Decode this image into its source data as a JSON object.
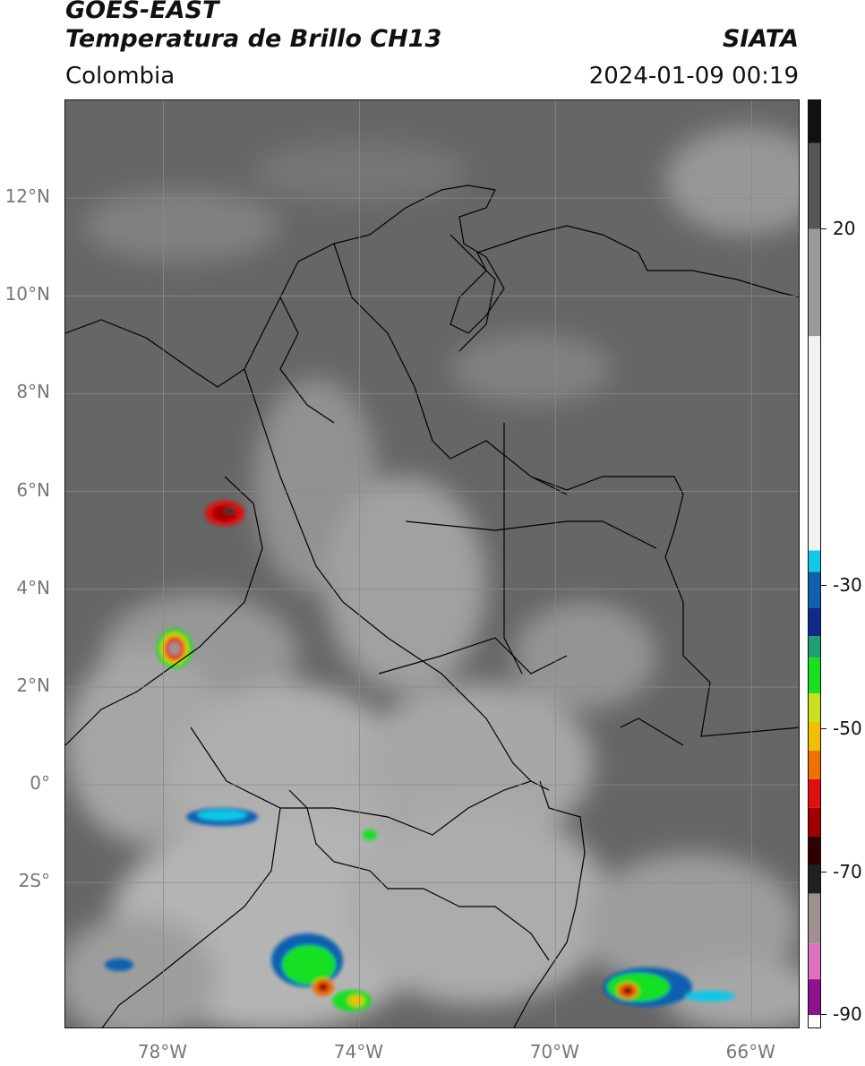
{
  "header": {
    "title_line1": "GOES-EAST",
    "title_line2": "Temperatura de Brillo CH13",
    "region": "Colombia",
    "source": "SIATA",
    "datetime": "2024-01-09 00:19"
  },
  "map": {
    "lon_range": [
      -80,
      -65
    ],
    "lat_range": [
      -5,
      14
    ],
    "grid": true,
    "lat_ticks": [
      {
        "lat": 12,
        "label": "12°N"
      },
      {
        "lat": 10,
        "label": "10°N"
      },
      {
        "lat": 8,
        "label": "8°N"
      },
      {
        "lat": 6,
        "label": "6°N"
      },
      {
        "lat": 4,
        "label": "4°N"
      },
      {
        "lat": 2,
        "label": "2°N"
      },
      {
        "lat": 0,
        "label": "0°"
      },
      {
        "lat": -2,
        "label": "2S°"
      }
    ],
    "lon_ticks": [
      {
        "lon": -78,
        "label": "78°W"
      },
      {
        "lon": -74,
        "label": "74°W"
      },
      {
        "lon": -70,
        "label": "70°W"
      },
      {
        "lon": -66,
        "label": "66°W"
      }
    ],
    "colors": {
      "background": "#666666",
      "coastline": "#000000",
      "gridline": "#8a8a8a"
    }
  },
  "colorbar": {
    "range": [
      -92,
      38
    ],
    "ticks": [
      {
        "value": 20,
        "label": "20"
      },
      {
        "value": -30,
        "label": "-30"
      },
      {
        "value": -50,
        "label": "-50"
      },
      {
        "value": -70,
        "label": "-70"
      },
      {
        "value": -90,
        "label": "-90"
      }
    ],
    "segments": [
      {
        "from": 38,
        "to": 32,
        "color": "#111111"
      },
      {
        "from": 32,
        "to": 20,
        "color": "#555555"
      },
      {
        "from": 20,
        "to": 5,
        "color": "#9a9a9a"
      },
      {
        "from": 5,
        "to": -25,
        "color": "#f2f2f2"
      },
      {
        "from": -25,
        "to": -28,
        "color": "#10c8e8"
      },
      {
        "from": -28,
        "to": -33,
        "color": "#1060b0"
      },
      {
        "from": -33,
        "to": -37,
        "color": "#102a8a"
      },
      {
        "from": -37,
        "to": -40,
        "color": "#20a070"
      },
      {
        "from": -40,
        "to": -45,
        "color": "#18e020"
      },
      {
        "from": -45,
        "to": -49,
        "color": "#c8e020"
      },
      {
        "from": -49,
        "to": -53,
        "color": "#f0c000"
      },
      {
        "from": -53,
        "to": -57,
        "color": "#f07000"
      },
      {
        "from": -57,
        "to": -61,
        "color": "#e01010"
      },
      {
        "from": -61,
        "to": -65,
        "color": "#a00000"
      },
      {
        "from": -65,
        "to": -69,
        "color": "#300000"
      },
      {
        "from": -69,
        "to": -73,
        "color": "#202020"
      },
      {
        "from": -73,
        "to": -80,
        "color": "#a09090"
      },
      {
        "from": -80,
        "to": -85,
        "color": "#e070c0"
      },
      {
        "from": -85,
        "to": -90,
        "color": "#901090"
      },
      {
        "from": -90,
        "to": -92,
        "color": "#ffffff"
      }
    ]
  }
}
